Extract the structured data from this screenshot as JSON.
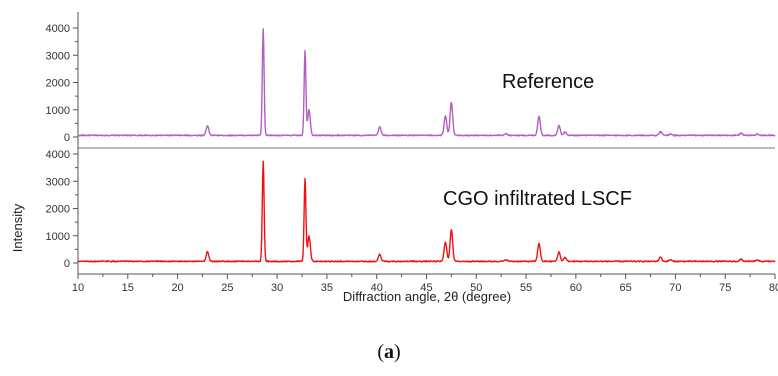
{
  "chart_data": {
    "type": "line",
    "title": "",
    "xlabel": "Diffraction angle, 2θ (degree)",
    "ylabel": "Intensity",
    "xlim": [
      10,
      80
    ],
    "ylim": [
      0,
      4000
    ],
    "x_ticks": [
      10,
      15,
      20,
      25,
      30,
      35,
      40,
      45,
      50,
      55,
      60,
      65,
      70,
      75,
      80
    ],
    "y_ticks": [
      0,
      1000,
      2000,
      3000,
      4000
    ],
    "grid": false,
    "legend": "none",
    "series": [
      {
        "name": "Reference",
        "color": "#b35fc2",
        "baseline": 60,
        "peaks": [
          {
            "x": 23.0,
            "y": 420
          },
          {
            "x": 28.6,
            "y": 3950
          },
          {
            "x": 32.8,
            "y": 3180
          },
          {
            "x": 33.2,
            "y": 1000
          },
          {
            "x": 40.3,
            "y": 380
          },
          {
            "x": 46.9,
            "y": 780
          },
          {
            "x": 47.5,
            "y": 1280
          },
          {
            "x": 53.0,
            "y": 130
          },
          {
            "x": 56.3,
            "y": 770
          },
          {
            "x": 58.3,
            "y": 420
          },
          {
            "x": 58.9,
            "y": 180
          },
          {
            "x": 68.5,
            "y": 200
          },
          {
            "x": 69.5,
            "y": 110
          },
          {
            "x": 76.6,
            "y": 150
          },
          {
            "x": 78.2,
            "y": 120
          }
        ]
      },
      {
        "name": "CGO infiltrated LSCF",
        "color": "#ee1111",
        "baseline": 60,
        "peaks": [
          {
            "x": 23.0,
            "y": 420
          },
          {
            "x": 28.6,
            "y": 3750
          },
          {
            "x": 32.8,
            "y": 3100
          },
          {
            "x": 33.2,
            "y": 1000
          },
          {
            "x": 40.3,
            "y": 320
          },
          {
            "x": 46.9,
            "y": 780
          },
          {
            "x": 47.5,
            "y": 1230
          },
          {
            "x": 53.0,
            "y": 120
          },
          {
            "x": 56.3,
            "y": 730
          },
          {
            "x": 58.3,
            "y": 400
          },
          {
            "x": 58.9,
            "y": 200
          },
          {
            "x": 68.5,
            "y": 220
          },
          {
            "x": 69.5,
            "y": 120
          },
          {
            "x": 76.6,
            "y": 140
          },
          {
            "x": 78.2,
            "y": 110
          }
        ]
      }
    ],
    "annotations": {
      "reference": "Reference",
      "infiltrated": "CGO infiltrated LSCF"
    }
  },
  "caption": {
    "open": "(",
    "letter": "a",
    "close": ")"
  }
}
